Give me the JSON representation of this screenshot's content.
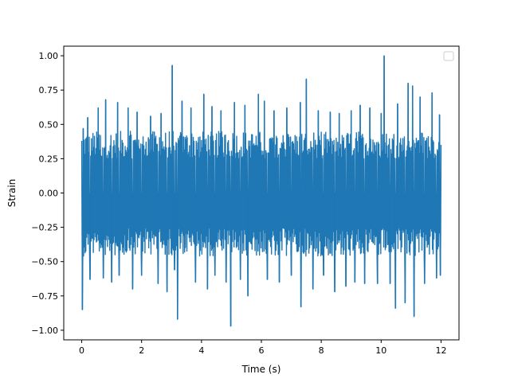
{
  "colors": {
    "series": "#1f77b4",
    "axes": "#000000",
    "background": "#ffffff"
  },
  "chart_data": {
    "type": "line",
    "title": "",
    "xlabel": "Time (s)",
    "ylabel": "Strain",
    "xlim": [
      -0.6,
      12.6
    ],
    "ylim": [
      -1.07,
      1.07
    ],
    "xticks": [
      0,
      2,
      4,
      6,
      8,
      10,
      12
    ],
    "xtick_labels": [
      "0",
      "2",
      "4",
      "6",
      "8",
      "10",
      "12"
    ],
    "yticks": [
      -1.0,
      -0.75,
      -0.5,
      -0.25,
      0.0,
      0.25,
      0.5,
      0.75,
      1.0
    ],
    "ytick_labels": [
      "−1.00",
      "−0.75",
      "−0.50",
      "−0.25",
      "0.00",
      "0.25",
      "0.50",
      "0.75",
      "1.00"
    ],
    "grid": false,
    "legend": {
      "placement": "top-right",
      "entries": []
    },
    "series": [
      {
        "color": "#1f77b4",
        "x_start": 0,
        "x_end": 12,
        "envelope": [
          0.45,
          -0.46
        ],
        "spikes": [
          {
            "x": 0.02,
            "y": -0.85
          },
          {
            "x": 0.05,
            "y": 0.47
          },
          {
            "x": 0.2,
            "y": 0.55
          },
          {
            "x": 0.28,
            "y": -0.63
          },
          {
            "x": 0.55,
            "y": 0.62
          },
          {
            "x": 0.72,
            "y": -0.62
          },
          {
            "x": 0.8,
            "y": 0.68
          },
          {
            "x": 1.0,
            "y": -0.65
          },
          {
            "x": 1.2,
            "y": 0.66
          },
          {
            "x": 1.25,
            "y": -0.6
          },
          {
            "x": 1.55,
            "y": 0.62
          },
          {
            "x": 1.7,
            "y": -0.7
          },
          {
            "x": 1.85,
            "y": 0.59
          },
          {
            "x": 2.0,
            "y": -0.6
          },
          {
            "x": 2.3,
            "y": 0.56
          },
          {
            "x": 2.55,
            "y": -0.66
          },
          {
            "x": 2.65,
            "y": 0.58
          },
          {
            "x": 2.85,
            "y": -0.72
          },
          {
            "x": 3.02,
            "y": 0.93
          },
          {
            "x": 3.1,
            "y": -0.56
          },
          {
            "x": 3.2,
            "y": -0.92
          },
          {
            "x": 3.35,
            "y": 0.67
          },
          {
            "x": 3.65,
            "y": 0.62
          },
          {
            "x": 3.8,
            "y": -0.65
          },
          {
            "x": 4.08,
            "y": 0.72
          },
          {
            "x": 4.2,
            "y": -0.7
          },
          {
            "x": 4.35,
            "y": 0.63
          },
          {
            "x": 4.45,
            "y": -0.6
          },
          {
            "x": 4.65,
            "y": 0.6
          },
          {
            "x": 4.82,
            "y": -0.65
          },
          {
            "x": 4.98,
            "y": -0.97
          },
          {
            "x": 5.1,
            "y": 0.66
          },
          {
            "x": 5.3,
            "y": -0.63
          },
          {
            "x": 5.45,
            "y": 0.64
          },
          {
            "x": 5.55,
            "y": -0.75
          },
          {
            "x": 5.9,
            "y": 0.72
          },
          {
            "x": 6.1,
            "y": 0.67
          },
          {
            "x": 6.2,
            "y": -0.63
          },
          {
            "x": 6.42,
            "y": 0.6
          },
          {
            "x": 6.6,
            "y": -0.65
          },
          {
            "x": 6.85,
            "y": 0.62
          },
          {
            "x": 7.0,
            "y": -0.6
          },
          {
            "x": 7.3,
            "y": 0.66
          },
          {
            "x": 7.32,
            "y": -0.83
          },
          {
            "x": 7.5,
            "y": 0.83
          },
          {
            "x": 7.72,
            "y": -0.7
          },
          {
            "x": 7.9,
            "y": 0.6
          },
          {
            "x": 8.08,
            "y": -0.6
          },
          {
            "x": 8.3,
            "y": 0.59
          },
          {
            "x": 8.45,
            "y": -0.72
          },
          {
            "x": 8.6,
            "y": 0.58
          },
          {
            "x": 8.82,
            "y": -0.68
          },
          {
            "x": 9.0,
            "y": 0.6
          },
          {
            "x": 9.12,
            "y": -0.65
          },
          {
            "x": 9.3,
            "y": 0.64
          },
          {
            "x": 9.45,
            "y": -0.66
          },
          {
            "x": 9.62,
            "y": 0.62
          },
          {
            "x": 9.88,
            "y": -0.66
          },
          {
            "x": 10.0,
            "y": 0.58
          },
          {
            "x": 10.1,
            "y": 1.0
          },
          {
            "x": 10.3,
            "y": -0.66
          },
          {
            "x": 10.48,
            "y": -0.84
          },
          {
            "x": 10.55,
            "y": 0.65
          },
          {
            "x": 10.8,
            "y": -0.8
          },
          {
            "x": 10.9,
            "y": 0.8
          },
          {
            "x": 11.05,
            "y": 0.78
          },
          {
            "x": 11.1,
            "y": -0.9
          },
          {
            "x": 11.3,
            "y": 0.7
          },
          {
            "x": 11.45,
            "y": -0.66
          },
          {
            "x": 11.7,
            "y": 0.73
          },
          {
            "x": 11.85,
            "y": -0.62
          },
          {
            "x": 11.95,
            "y": 0.57
          },
          {
            "x": 11.98,
            "y": -0.6
          }
        ]
      }
    ]
  }
}
